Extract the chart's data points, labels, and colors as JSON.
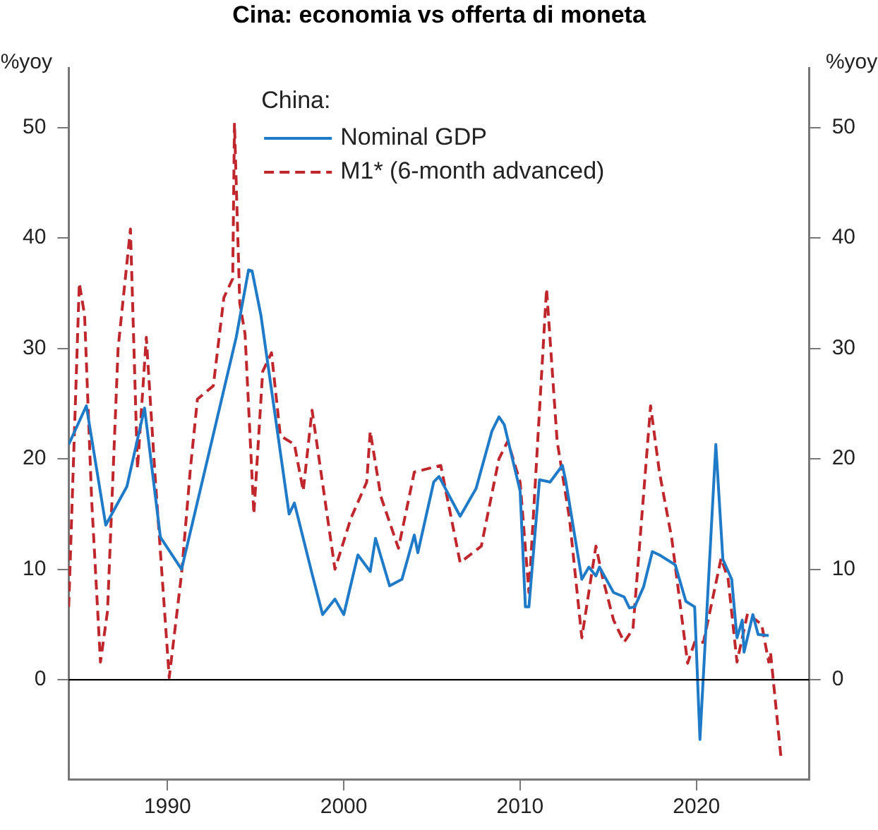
{
  "chart_data": {
    "type": "line",
    "title": "Cina: economia vs offerta di moneta",
    "ylabel": "%yoy",
    "y2label": "%yoy",
    "legend_title": "China:",
    "legend": "top",
    "marker": "none",
    "grid": false,
    "xlim": [
      1984.4,
      2026.4
    ],
    "xticks": [
      1990,
      2000,
      2010,
      2020
    ],
    "ylim": [
      -9,
      55.4
    ],
    "yticks": [
      0,
      10,
      20,
      30,
      40,
      50
    ],
    "y2lim": [
      -9,
      55.4
    ],
    "y2ticks": [
      0,
      10,
      20,
      30,
      40,
      50
    ],
    "ref_lines": [
      {
        "axis": "y",
        "value": 0,
        "color": "#000000"
      }
    ],
    "series": [
      {
        "name": "Nominal GDP",
        "color": "#1f7ac8",
        "line_style": "solid",
        "x": [
          1984.4,
          1985.4,
          1986.5,
          1987.7,
          1988.7,
          1989.6,
          1990.8,
          1993.9,
          1994.6,
          1994.8,
          1995.3,
          1996.9,
          1997.2,
          1998.2,
          1998.8,
          1999.5,
          2000.0,
          2000.8,
          2001.5,
          2001.8,
          2002.6,
          2003.3,
          2004.0,
          2004.2,
          2005.1,
          2005.4,
          2006.6,
          2007.5,
          2008.4,
          2008.8,
          2009.1,
          2010.0,
          2010.3,
          2010.5,
          2011.1,
          2011.7,
          2012.4,
          2012.6,
          2013.5,
          2013.9,
          2014.3,
          2014.5,
          2015.3,
          2015.9,
          2016.2,
          2016.5,
          2017.0,
          2017.5,
          2017.9,
          2018.8,
          2019.4,
          2019.9,
          2020.2,
          2021.1,
          2021.5,
          2022.0,
          2022.3,
          2022.6,
          2022.7,
          2023.2,
          2023.5,
          2024.1
        ],
        "values": [
          21.3,
          24.8,
          14,
          17.5,
          24.6,
          12.9,
          10,
          31,
          37.1,
          37,
          33,
          15,
          16,
          9.6,
          5.9,
          7.3,
          5.9,
          11.3,
          9.8,
          12.8,
          8.5,
          9.1,
          13.1,
          11.5,
          17.9,
          18.4,
          14.8,
          17.3,
          22.5,
          23.8,
          23.1,
          17.1,
          6.6,
          6.6,
          18.1,
          17.9,
          19.4,
          17.9,
          9.1,
          10.2,
          9.4,
          10.2,
          7.9,
          7.5,
          6.5,
          6.6,
          8.4,
          11.6,
          11.3,
          10.4,
          7.1,
          6.6,
          -5.4,
          21.3,
          10.9,
          9.1,
          3.8,
          5.4,
          2.5,
          5.9,
          4.1,
          4.0
        ]
      },
      {
        "name": "M1* (6-month advanced)",
        "color": "#c0272d",
        "line_style": "dashed",
        "x": [
          1984.4,
          1985.0,
          1985.3,
          1985.7,
          1986.2,
          1986.6,
          1987.2,
          1987.9,
          1988.3,
          1988.8,
          1989.3,
          1990.1,
          1990.8,
          1991.3,
          1991.7,
          1992.6,
          1993.2,
          1993.7,
          1993.8,
          1994.1,
          1994.4,
          1994.9,
          1995.4,
          1995.9,
          1996.4,
          1997.2,
          1997.7,
          1998.2,
          1999.5,
          2000.4,
          2001.3,
          2001.5,
          2002.1,
          2003.1,
          2004.0,
          2005.5,
          2006.6,
          2007.8,
          2008.8,
          2009.3,
          2010.0,
          2010.5,
          2011.5,
          2012.1,
          2012.8,
          2013.5,
          2014.3,
          2014.7,
          2015.3,
          2015.9,
          2016.4,
          2017.4,
          2017.9,
          2018.6,
          2019.5,
          2019.9,
          2020.4,
          2021.4,
          2021.8,
          2022.3,
          2022.9,
          2023.7,
          2024.1,
          2024.2,
          2024.8
        ],
        "values": [
          6.6,
          35.9,
          33,
          16.3,
          1.6,
          6.2,
          30,
          40.8,
          19.1,
          31,
          18.4,
          0.2,
          9.6,
          19.1,
          25.4,
          26.6,
          34.6,
          36.3,
          50.4,
          34.1,
          31.3,
          15,
          27.9,
          29.6,
          22.1,
          21.3,
          17.1,
          24.4,
          10,
          14.6,
          17.9,
          22.5,
          16.6,
          11.9,
          18.8,
          19.4,
          10.6,
          12.1,
          20,
          21.6,
          17.9,
          7.9,
          35.4,
          21.6,
          14.6,
          3.8,
          12.1,
          9.1,
          5.4,
          3.4,
          4.6,
          24.8,
          18.8,
          12.8,
          1.5,
          3.4,
          3.4,
          11,
          9.1,
          1.6,
          6,
          5,
          1.6,
          2.5,
          -7.1
        ]
      }
    ]
  }
}
